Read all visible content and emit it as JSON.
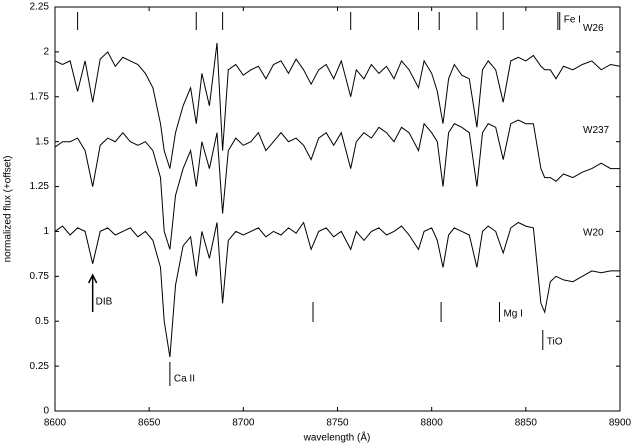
{
  "chart_data": {
    "type": "line",
    "xlabel": "wavelength (Å)",
    "ylabel": "normalized flux (+offset)",
    "xlim": [
      8600,
      8900
    ],
    "xticks": [
      8600,
      8650,
      8700,
      8750,
      8800,
      8850,
      8900
    ],
    "ylim": [
      0,
      2.25
    ],
    "yticks": [
      0,
      0.25,
      0.5,
      0.75,
      1,
      1.25,
      1.5,
      1.75,
      2,
      2.25
    ],
    "x": [
      8600,
      8604,
      8608,
      8612,
      8616,
      8620,
      8624,
      8628,
      8632,
      8636,
      8640,
      8644,
      8648,
      8652,
      8656,
      8658,
      8661,
      8664,
      8668,
      8672,
      8675,
      8678,
      8682,
      8686,
      8689,
      8692,
      8696,
      8700,
      8704,
      8708,
      8712,
      8716,
      8720,
      8724,
      8728,
      8732,
      8736,
      8740,
      8744,
      8748,
      8752,
      8757,
      8760,
      8764,
      8768,
      8772,
      8776,
      8780,
      8784,
      8788,
      8793,
      8796,
      8800,
      8803,
      8806,
      8809,
      8812,
      8816,
      8820,
      8824,
      8827,
      8830,
      8834,
      8838,
      8842,
      8846,
      8850,
      8854,
      8858,
      8860,
      8863,
      8866,
      8870,
      8875,
      8880,
      8885,
      8890,
      8895,
      8900
    ],
    "series": [
      {
        "name": "W26",
        "color": "#000000",
        "values": [
          1.95,
          1.93,
          1.95,
          1.78,
          1.95,
          1.72,
          1.96,
          2.0,
          1.92,
          1.97,
          1.95,
          1.93,
          1.88,
          1.8,
          1.6,
          1.45,
          1.35,
          1.55,
          1.7,
          1.8,
          1.6,
          1.88,
          1.7,
          2.05,
          1.45,
          1.9,
          1.93,
          1.87,
          1.9,
          1.92,
          1.85,
          1.93,
          1.95,
          1.88,
          1.96,
          1.9,
          1.82,
          1.9,
          1.93,
          1.85,
          1.95,
          1.75,
          1.9,
          1.85,
          1.93,
          1.88,
          1.92,
          1.85,
          1.95,
          1.9,
          1.8,
          1.95,
          1.88,
          1.78,
          1.6,
          1.85,
          1.93,
          1.87,
          1.85,
          1.58,
          1.9,
          1.95,
          1.9,
          1.72,
          1.95,
          1.97,
          1.95,
          1.98,
          1.92,
          1.9,
          1.9,
          1.85,
          1.92,
          1.9,
          1.93,
          1.95,
          1.9,
          1.93,
          1.92
        ]
      },
      {
        "name": "W237",
        "color": "#000000",
        "values": [
          1.47,
          1.5,
          1.5,
          1.52,
          1.45,
          1.25,
          1.48,
          1.52,
          1.5,
          1.55,
          1.5,
          1.48,
          1.5,
          1.45,
          1.3,
          1.0,
          0.9,
          1.2,
          1.35,
          1.45,
          1.25,
          1.5,
          1.35,
          1.55,
          1.1,
          1.45,
          1.52,
          1.48,
          1.5,
          1.55,
          1.45,
          1.5,
          1.55,
          1.5,
          1.52,
          1.48,
          1.4,
          1.52,
          1.55,
          1.48,
          1.55,
          1.35,
          1.5,
          1.55,
          1.52,
          1.58,
          1.55,
          1.5,
          1.58,
          1.55,
          1.45,
          1.6,
          1.55,
          1.5,
          1.25,
          1.55,
          1.6,
          1.58,
          1.55,
          1.25,
          1.55,
          1.6,
          1.58,
          1.4,
          1.6,
          1.62,
          1.6,
          1.6,
          1.35,
          1.3,
          1.3,
          1.28,
          1.32,
          1.3,
          1.33,
          1.35,
          1.38,
          1.35,
          1.35
        ]
      },
      {
        "name": "W20",
        "color": "#000000",
        "values": [
          1.0,
          1.03,
          0.98,
          1.02,
          1.0,
          0.82,
          1.0,
          1.02,
          0.98,
          1.0,
          1.02,
          0.97,
          1.0,
          0.95,
          0.8,
          0.5,
          0.3,
          0.7,
          0.92,
          0.97,
          0.75,
          1.0,
          0.85,
          1.05,
          0.6,
          0.95,
          1.0,
          0.98,
          1.0,
          1.02,
          0.97,
          1.0,
          0.98,
          1.02,
          0.99,
          1.05,
          0.9,
          1.0,
          1.02,
          0.97,
          1.0,
          0.9,
          1.0,
          0.95,
          1.0,
          1.02,
          0.98,
          1.0,
          1.03,
          0.98,
          0.9,
          1.0,
          1.02,
          0.95,
          0.8,
          0.98,
          1.02,
          1.0,
          0.98,
          0.8,
          1.0,
          1.03,
          1.0,
          0.88,
          1.02,
          1.05,
          1.03,
          1.02,
          0.6,
          0.55,
          0.72,
          0.75,
          0.73,
          0.72,
          0.75,
          0.78,
          0.77,
          0.78,
          0.78
        ]
      }
    ],
    "annotations": [
      {
        "label": "Fe I",
        "x": [
          8612,
          8675,
          8689,
          8757,
          8793,
          8804,
          8824,
          8838,
          8867,
          8868
        ]
      },
      {
        "label": "Mg I",
        "x": [
          8737,
          8805,
          8836
        ]
      },
      {
        "label": "Ca II",
        "x": [
          8661
        ]
      },
      {
        "label": "TiO",
        "x": [
          8859
        ]
      },
      {
        "label": "DIB",
        "x": [
          8620
        ]
      }
    ]
  }
}
